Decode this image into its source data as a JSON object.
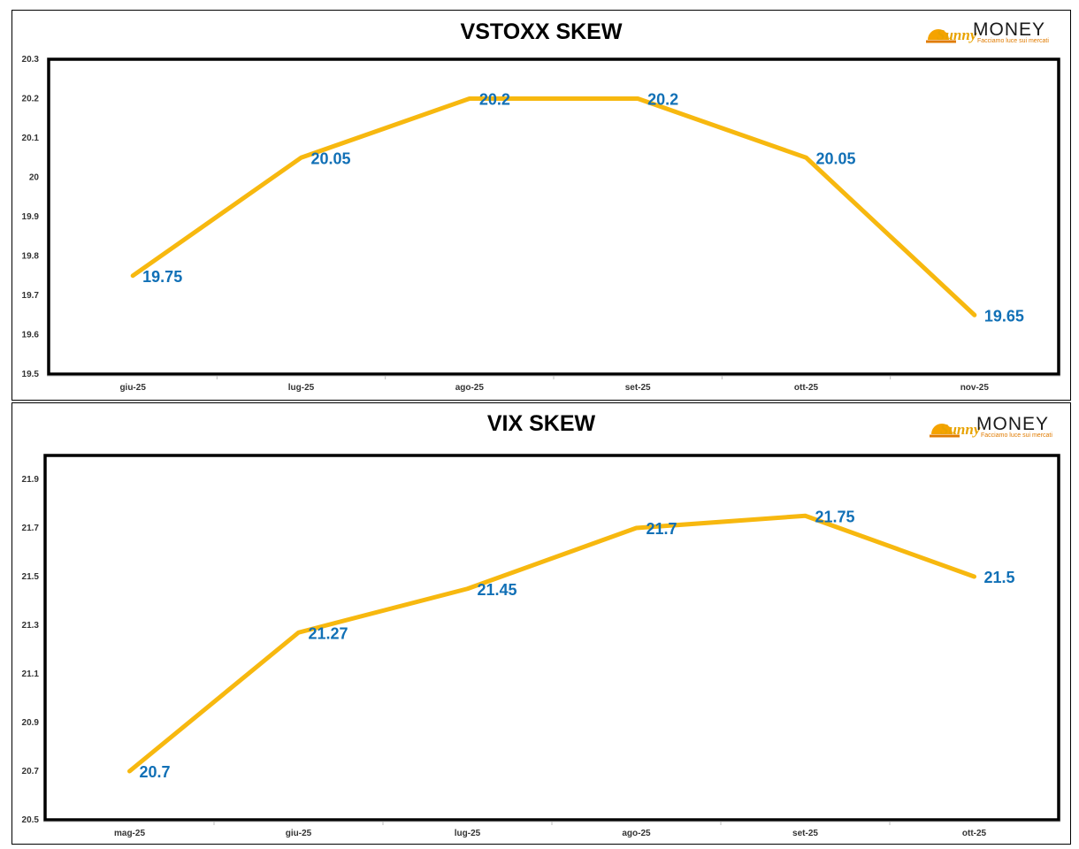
{
  "brand": {
    "name": "MONEY",
    "script": "Sunny",
    "tagline": "Facciamo luce sui mercati",
    "colors": {
      "orange": "#f5a300",
      "dark": "#1a1a1a"
    }
  },
  "colors": {
    "line": "#f7b80f",
    "label": "#1170b6",
    "frame": "#000000"
  },
  "chart_data": [
    {
      "type": "line",
      "title": "VSTOXX SKEW",
      "categories": [
        "giu-25",
        "lug-25",
        "ago-25",
        "set-25",
        "ott-25",
        "nov-25"
      ],
      "values": [
        19.75,
        20.05,
        20.2,
        20.2,
        20.05,
        19.65
      ],
      "data_labels": [
        "19.75",
        "20.05",
        "20.2",
        "20.2",
        "20.05",
        "19.65"
      ],
      "y_ticks": [
        "19.5",
        "19.6",
        "19.7",
        "19.8",
        "19.9",
        "20",
        "20.1",
        "20.2",
        "20.3"
      ],
      "ylim": [
        19.5,
        20.3
      ],
      "grid": false,
      "legend": "none"
    },
    {
      "type": "line",
      "title": "VIX SKEW",
      "categories": [
        "mag-25",
        "giu-25",
        "lug-25",
        "ago-25",
        "set-25",
        "ott-25"
      ],
      "values": [
        20.7,
        21.27,
        21.45,
        21.7,
        21.75,
        21.5
      ],
      "data_labels": [
        "20.7",
        "21.27",
        "21.45",
        "21.7",
        "21.75",
        "21.5"
      ],
      "y_ticks": [
        "20.5",
        "20.7",
        "20.9",
        "21.1",
        "21.3",
        "21.5",
        "21.7",
        "21.9"
      ],
      "ylim": [
        20.5,
        22.0
      ],
      "grid": false,
      "legend": "none"
    }
  ]
}
